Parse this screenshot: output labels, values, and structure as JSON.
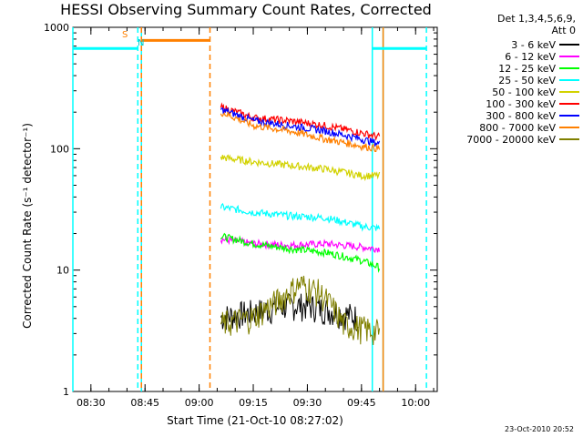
{
  "title": "HESSI Observing Summary Count Rates, Corrected",
  "x_axis": {
    "label": "Start Time (21-Oct-10 08:27:02)",
    "ticks": [
      "08:30",
      "08:45",
      "09:00",
      "09:15",
      "09:30",
      "09:45",
      "10:00"
    ]
  },
  "y_axis": {
    "label": "Corrected Count Rate (s⁻¹ detector⁻¹)",
    "ticks": [
      "1",
      "10",
      "100",
      "1000"
    ]
  },
  "legend": {
    "header": [
      "Det 1,3,4,5,6,9,",
      "Att 0"
    ],
    "entries": [
      {
        "label": "3 - 6 keV",
        "color": "#000000"
      },
      {
        "label": "6 - 12 keV",
        "color": "#ff00ff"
      },
      {
        "label": "12 - 25 keV",
        "color": "#00ff00"
      },
      {
        "label": "25 - 50 keV",
        "color": "#00ffff"
      },
      {
        "label": "50 - 100 keV",
        "color": "#d2d200"
      },
      {
        "label": "100 - 300 keV",
        "color": "#ff0000"
      },
      {
        "label": "300 - 800 keV",
        "color": "#0000ff"
      },
      {
        "label": "800 - 7000 keV",
        "color": "#ff8000"
      },
      {
        "label": "7000 - 20000 keV",
        "color": "#808000"
      }
    ]
  },
  "markers": {
    "saa_label": "S",
    "night_label": "N"
  },
  "timestamp": "23-Oct-2010 20:52",
  "chart_data": {
    "type": "line",
    "title": "HESSI Observing Summary Count Rates, Corrected",
    "xlabel": "Start Time (21-Oct-10 08:27:02)",
    "ylabel": "Corrected Count Rate (s⁻¹ detector⁻¹)",
    "xlim": [
      "08:25",
      "10:06"
    ],
    "ylim": [
      1,
      1000
    ],
    "yscale": "log",
    "x_ticks": [
      "08:30",
      "08:45",
      "09:00",
      "09:15",
      "09:30",
      "09:45",
      "10:00"
    ],
    "series": [
      {
        "name": "3 - 6 keV",
        "color": "#000000",
        "style": "noisy",
        "x": [
          "09:06",
          "09:17",
          "09:25",
          "09:30",
          "09:37",
          "09:44"
        ],
        "y": [
          4,
          4.5,
          5,
          5,
          4.5,
          4
        ]
      },
      {
        "name": "6 - 12 keV",
        "color": "#ff00ff",
        "style": "line",
        "x": [
          "09:06",
          "09:15",
          "09:25",
          "09:35",
          "09:45",
          "09:50"
        ],
        "y": [
          18,
          16.5,
          16,
          16.5,
          15.5,
          15
        ]
      },
      {
        "name": "12 - 25 keV",
        "color": "#00ff00",
        "style": "line",
        "x": [
          "09:06",
          "09:15",
          "09:25",
          "09:35",
          "09:45",
          "09:50"
        ],
        "y": [
          19,
          16.5,
          15,
          14,
          12,
          10.5
        ]
      },
      {
        "name": "25 - 50 keV",
        "color": "#00ffff",
        "style": "line",
        "x": [
          "09:06",
          "09:15",
          "09:25",
          "09:35",
          "09:45",
          "09:50"
        ],
        "y": [
          33,
          30,
          28,
          27,
          23,
          22
        ]
      },
      {
        "name": "50 - 100 keV",
        "color": "#d2d200",
        "style": "line",
        "x": [
          "09:06",
          "09:15",
          "09:25",
          "09:35",
          "09:45",
          "09:50"
        ],
        "y": [
          85,
          78,
          73,
          68,
          60,
          60
        ]
      },
      {
        "name": "100 - 300 keV",
        "color": "#ff0000",
        "style": "line",
        "x": [
          "09:06",
          "09:15",
          "09:25",
          "09:35",
          "09:45",
          "09:50"
        ],
        "y": [
          220,
          180,
          170,
          155,
          135,
          125
        ]
      },
      {
        "name": "300 - 800 keV",
        "color": "#0000ff",
        "style": "line",
        "x": [
          "09:06",
          "09:15",
          "09:25",
          "09:35",
          "09:45",
          "09:50"
        ],
        "y": [
          210,
          170,
          155,
          140,
          120,
          110
        ]
      },
      {
        "name": "800 - 7000 keV",
        "color": "#ff8000",
        "style": "line",
        "x": [
          "09:06",
          "09:15",
          "09:25",
          "09:35",
          "09:45",
          "09:50"
        ],
        "y": [
          200,
          155,
          140,
          120,
          105,
          100
        ]
      },
      {
        "name": "7000 - 20000 keV",
        "color": "#808000",
        "style": "noisy",
        "x": [
          "09:06",
          "09:15",
          "09:22",
          "09:28",
          "09:33",
          "09:40",
          "09:50"
        ],
        "y": [
          3.5,
          4,
          5.5,
          7.5,
          6.5,
          3.5,
          3
        ]
      }
    ],
    "spans": [
      {
        "color": "#00ffff",
        "x0": "08:25",
        "x1": "08:43",
        "y": 670
      },
      {
        "color": "#ff8000",
        "x0": "08:44",
        "x1": "09:03",
        "y": 780
      },
      {
        "color": "#00ffff",
        "x0": "09:48",
        "x1": "10:03",
        "y": 670
      }
    ],
    "vlines": [
      {
        "x": "08:25",
        "color": "#00ffff",
        "dash": false
      },
      {
        "x": "08:43",
        "color": "#00ffff",
        "dash": true
      },
      {
        "x": "08:44",
        "color": "#00ffff",
        "dash": false
      },
      {
        "x": "08:44",
        "color": "#ff8000",
        "dash": true
      },
      {
        "x": "09:03",
        "color": "#ff8000",
        "dash": true
      },
      {
        "x": "09:48",
        "color": "#00ffff",
        "dash": false
      },
      {
        "x": "09:51",
        "color": "#00ffff",
        "dash": false
      },
      {
        "x": "09:51",
        "color": "#ff8000",
        "dash": false
      },
      {
        "x": "10:03",
        "color": "#00ffff",
        "dash": true
      }
    ]
  }
}
